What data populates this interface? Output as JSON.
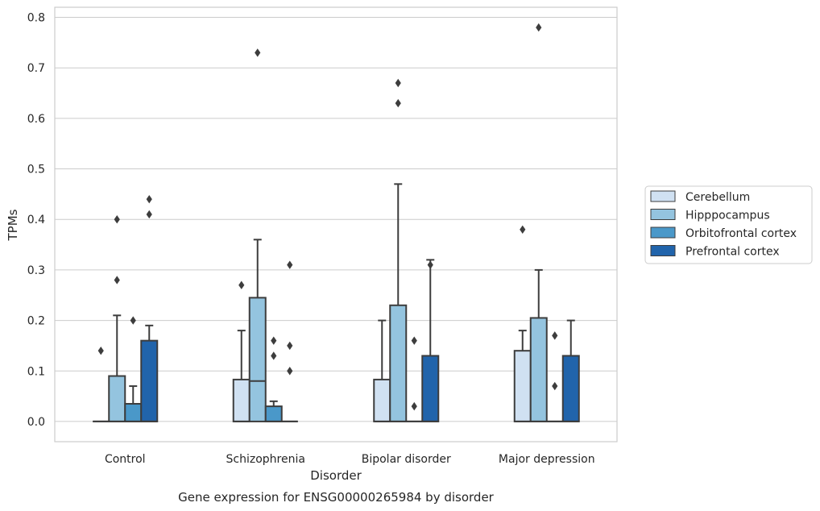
{
  "chart_data": {
    "type": "boxplot",
    "caption": "Gene expression for ENSG00000265984 by disorder",
    "xlabel": "Disorder",
    "ylabel": "TPMs",
    "ylim": [
      -0.04,
      0.82
    ],
    "yticks": [
      "0.0",
      "0.1",
      "0.2",
      "0.3",
      "0.4",
      "0.5",
      "0.6",
      "0.7",
      "0.8"
    ],
    "grid": true,
    "legend_position": "right",
    "categories": [
      "Control",
      "Schizophrenia",
      "Bipolar disorder",
      "Major depression"
    ],
    "series": [
      {
        "name": "Cerebellum",
        "color": "#d0e1f2",
        "boxes": [
          {
            "q1": 0.0,
            "median": 0.0,
            "q3": 0.0,
            "whislo": 0.0,
            "whishi": 0.0,
            "fliers": [
              0.14
            ]
          },
          {
            "q1": 0.0,
            "median": 0.0,
            "q3": 0.083,
            "whislo": 0.0,
            "whishi": 0.18,
            "fliers": [
              0.27
            ]
          },
          {
            "q1": 0.0,
            "median": 0.0,
            "q3": 0.083,
            "whislo": 0.0,
            "whishi": 0.2,
            "fliers": []
          },
          {
            "q1": 0.0,
            "median": 0.0,
            "q3": 0.14,
            "whislo": 0.0,
            "whishi": 0.18,
            "fliers": [
              0.38
            ]
          }
        ]
      },
      {
        "name": "Hipppocampus",
        "color": "#94c4df",
        "boxes": [
          {
            "q1": 0.0,
            "median": 0.0,
            "q3": 0.09,
            "whislo": 0.0,
            "whishi": 0.21,
            "fliers": [
              0.28,
              0.4
            ]
          },
          {
            "q1": 0.0,
            "median": 0.08,
            "q3": 0.245,
            "whislo": 0.0,
            "whishi": 0.36,
            "fliers": [
              0.73
            ]
          },
          {
            "q1": 0.0,
            "median": 0.0,
            "q3": 0.23,
            "whislo": 0.0,
            "whishi": 0.47,
            "fliers": [
              0.63,
              0.67
            ]
          },
          {
            "q1": 0.0,
            "median": 0.0,
            "q3": 0.205,
            "whislo": 0.0,
            "whishi": 0.3,
            "fliers": [
              0.78
            ]
          }
        ]
      },
      {
        "name": "Orbitofrontal cortex",
        "color": "#4a98c9",
        "boxes": [
          {
            "q1": 0.0,
            "median": 0.0,
            "q3": 0.035,
            "whislo": 0.0,
            "whishi": 0.07,
            "fliers": [
              0.2
            ]
          },
          {
            "q1": 0.0,
            "median": 0.0,
            "q3": 0.03,
            "whislo": 0.0,
            "whishi": 0.04,
            "fliers": [
              0.13,
              0.16
            ]
          },
          {
            "q1": 0.0,
            "median": 0.0,
            "q3": 0.0,
            "whislo": 0.0,
            "whishi": 0.0,
            "fliers": [
              0.03,
              0.16
            ]
          },
          {
            "q1": 0.0,
            "median": 0.0,
            "q3": 0.0,
            "whislo": 0.0,
            "whishi": 0.0,
            "fliers": [
              0.07,
              0.17
            ]
          }
        ]
      },
      {
        "name": "Prefrontal cortex",
        "color": "#2164ab",
        "boxes": [
          {
            "q1": 0.0,
            "median": 0.0,
            "q3": 0.16,
            "whislo": 0.0,
            "whishi": 0.19,
            "fliers": [
              0.41,
              0.44
            ]
          },
          {
            "q1": 0.0,
            "median": 0.0,
            "q3": 0.0,
            "whislo": 0.0,
            "whishi": 0.0,
            "fliers": [
              0.1,
              0.15,
              0.31
            ]
          },
          {
            "q1": 0.0,
            "median": 0.0,
            "q3": 0.13,
            "whislo": 0.0,
            "whishi": 0.32,
            "fliers": [
              0.31
            ]
          },
          {
            "q1": 0.0,
            "median": 0.0,
            "q3": 0.13,
            "whislo": 0.0,
            "whishi": 0.2,
            "fliers": []
          }
        ]
      }
    ]
  }
}
